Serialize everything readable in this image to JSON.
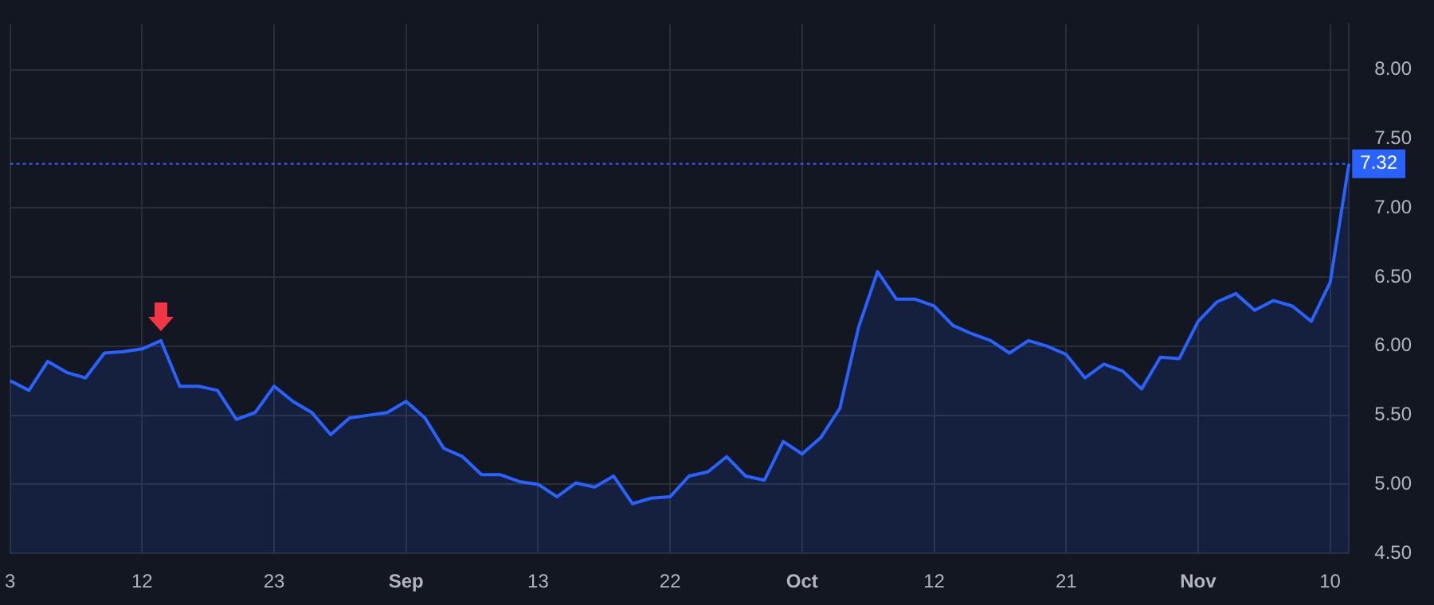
{
  "chart_data": {
    "type": "area",
    "categories": [
      "3",
      null,
      null,
      null,
      null,
      null,
      null,
      "12",
      null,
      null,
      null,
      null,
      null,
      null,
      "23",
      null,
      null,
      null,
      null,
      null,
      null,
      "Sep",
      null,
      null,
      null,
      null,
      null,
      null,
      "13",
      null,
      null,
      null,
      null,
      null,
      null,
      "22",
      null,
      null,
      null,
      null,
      null,
      null,
      "Oct",
      null,
      null,
      null,
      null,
      null,
      null,
      "12",
      null,
      null,
      null,
      null,
      null,
      null,
      "21",
      null,
      null,
      null,
      null,
      null,
      null,
      "Nov",
      null,
      null,
      null,
      null,
      null,
      null,
      "10",
      null
    ],
    "series": [
      {
        "color": "#2962ff",
        "values": [
          5.75,
          5.68,
          5.89,
          5.81,
          5.77,
          5.95,
          5.96,
          5.98,
          6.04,
          5.71,
          5.71,
          5.68,
          5.47,
          5.52,
          5.71,
          5.6,
          5.52,
          5.36,
          5.48,
          5.5,
          5.52,
          5.6,
          5.48,
          5.26,
          5.2,
          5.07,
          5.07,
          5.02,
          5.0,
          4.91,
          5.01,
          4.98,
          5.06,
          4.86,
          4.9,
          4.91,
          5.06,
          5.09,
          5.2,
          5.06,
          5.03,
          5.31,
          5.22,
          5.34,
          5.55,
          6.14,
          6.54,
          6.34,
          6.34,
          6.29,
          6.15,
          6.09,
          6.04,
          5.95,
          6.04,
          6.0,
          5.94,
          5.77,
          5.87,
          5.82,
          5.69,
          5.92,
          5.91,
          6.18,
          6.32,
          6.38,
          6.26,
          6.33,
          6.29,
          6.18,
          6.46,
          7.32
        ]
      }
    ],
    "ylim": [
      4.5,
      8.33
    ],
    "yticks": [
      {
        "value": 4.5,
        "label": "4.50"
      },
      {
        "value": 5,
        "label": "5.00"
      },
      {
        "value": 5.5,
        "label": "5.50"
      },
      {
        "value": 6,
        "label": "6.00"
      },
      {
        "value": 6.5,
        "label": "6.50"
      },
      {
        "value": 7,
        "label": "7.00"
      },
      {
        "value": 7.5,
        "label": "7.50"
      },
      {
        "value": 8,
        "label": "8.00"
      }
    ],
    "ref_lines": [
      {
        "axis": "y",
        "value": 7.32,
        "label": "7.32",
        "color": "#2962ff",
        "line_style": "dotted"
      }
    ],
    "grid": true,
    "legend": false
  }
}
